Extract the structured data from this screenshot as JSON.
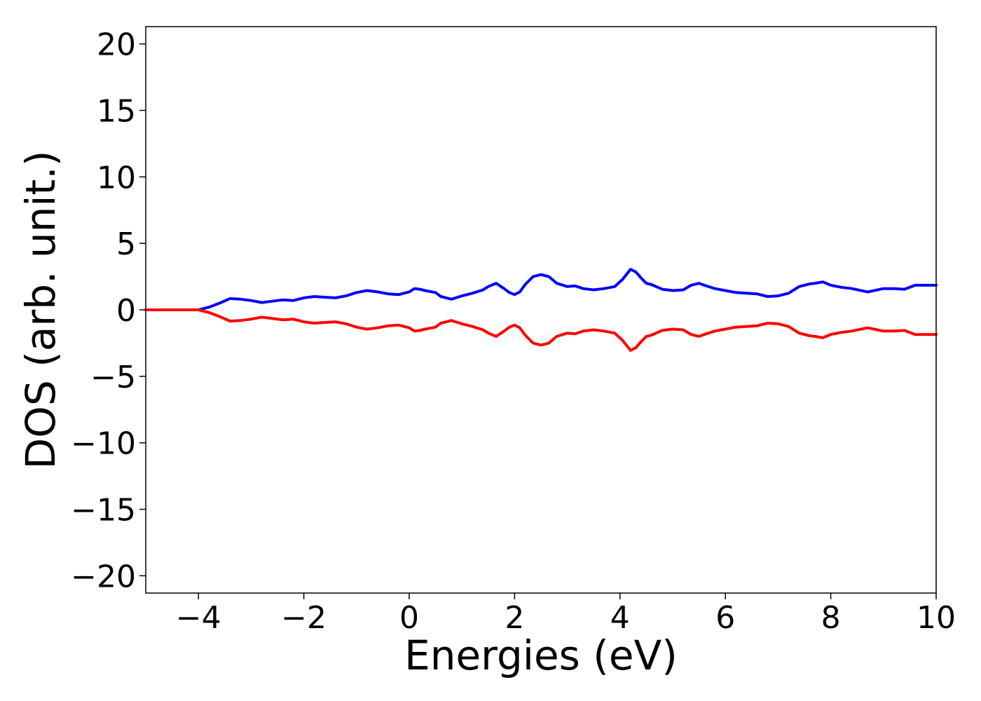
{
  "chart_data": {
    "type": "line",
    "title": "",
    "xlabel": "Energies (eV)",
    "ylabel": "DOS (arb. unit.)",
    "xlim": [
      -5,
      10
    ],
    "ylim": [
      -21.3,
      21.3
    ],
    "xticks": [
      -4,
      -2,
      0,
      2,
      4,
      6,
      8,
      10
    ],
    "xtick_labels": [
      "−4",
      "−2",
      "0",
      "2",
      "4",
      "6",
      "8",
      "10"
    ],
    "yticks": [
      20,
      15,
      10,
      5,
      0,
      -5,
      -10,
      -15,
      -20
    ],
    "ytick_labels": [
      "20",
      "15",
      "10",
      "5",
      "0",
      "−5",
      "−10",
      "−15",
      "−20"
    ],
    "grid": false,
    "series": [
      {
        "color": "#0000ff",
        "x": [
          -5,
          -4.5,
          -4,
          -3.8,
          -3.6,
          -3.4,
          -3.2,
          -3.0,
          -2.8,
          -2.6,
          -2.4,
          -2.2,
          -2.0,
          -1.8,
          -1.6,
          -1.4,
          -1.2,
          -1.0,
          -0.8,
          -0.6,
          -0.4,
          -0.2,
          0.0,
          0.1,
          0.2,
          0.3,
          0.5,
          0.6,
          0.8,
          1.0,
          1.2,
          1.4,
          1.5,
          1.65,
          1.8,
          1.9,
          2.0,
          2.1,
          2.2,
          2.35,
          2.5,
          2.65,
          2.8,
          3.0,
          3.15,
          3.3,
          3.5,
          3.7,
          3.9,
          4.05,
          4.2,
          4.3,
          4.4,
          4.5,
          4.6,
          4.8,
          5.0,
          5.2,
          5.35,
          5.5,
          5.6,
          5.8,
          6.0,
          6.2,
          6.4,
          6.6,
          6.8,
          7.0,
          7.2,
          7.4,
          7.6,
          7.7,
          7.85,
          8.0,
          8.2,
          8.4,
          8.7,
          9.0,
          9.2,
          9.4,
          9.6,
          10.0
        ],
        "y": [
          0,
          0,
          0,
          0.2,
          0.5,
          0.85,
          0.8,
          0.7,
          0.55,
          0.65,
          0.75,
          0.7,
          0.9,
          1.0,
          0.95,
          0.9,
          1.05,
          1.3,
          1.45,
          1.35,
          1.2,
          1.15,
          1.35,
          1.6,
          1.55,
          1.45,
          1.3,
          1.0,
          0.8,
          1.05,
          1.25,
          1.5,
          1.75,
          2.0,
          1.6,
          1.3,
          1.15,
          1.35,
          1.9,
          2.5,
          2.65,
          2.5,
          2.0,
          1.75,
          1.8,
          1.6,
          1.5,
          1.6,
          1.75,
          2.3,
          3.05,
          2.85,
          2.4,
          2.0,
          1.9,
          1.55,
          1.45,
          1.5,
          1.85,
          2.0,
          1.85,
          1.6,
          1.45,
          1.3,
          1.25,
          1.2,
          1.0,
          1.05,
          1.25,
          1.75,
          1.95,
          2.0,
          2.1,
          1.85,
          1.7,
          1.6,
          1.35,
          1.6,
          1.6,
          1.55,
          1.85,
          1.85
        ]
      },
      {
        "color": "#ff0000",
        "x": [
          -5,
          -4.5,
          -4,
          -3.8,
          -3.6,
          -3.4,
          -3.2,
          -3.0,
          -2.8,
          -2.6,
          -2.4,
          -2.2,
          -2.0,
          -1.8,
          -1.6,
          -1.4,
          -1.2,
          -1.0,
          -0.8,
          -0.6,
          -0.4,
          -0.2,
          0.0,
          0.1,
          0.2,
          0.3,
          0.5,
          0.6,
          0.8,
          1.0,
          1.2,
          1.4,
          1.5,
          1.65,
          1.8,
          1.9,
          2.0,
          2.1,
          2.2,
          2.35,
          2.5,
          2.65,
          2.8,
          3.0,
          3.15,
          3.3,
          3.5,
          3.7,
          3.9,
          4.05,
          4.2,
          4.3,
          4.4,
          4.5,
          4.6,
          4.8,
          5.0,
          5.2,
          5.35,
          5.5,
          5.6,
          5.8,
          6.0,
          6.2,
          6.4,
          6.6,
          6.8,
          7.0,
          7.2,
          7.4,
          7.6,
          7.7,
          7.85,
          8.0,
          8.2,
          8.4,
          8.7,
          9.0,
          9.2,
          9.4,
          9.6,
          10.0
        ],
        "y": [
          0,
          0,
          0,
          -0.2,
          -0.5,
          -0.85,
          -0.8,
          -0.7,
          -0.55,
          -0.65,
          -0.75,
          -0.7,
          -0.9,
          -1.0,
          -0.95,
          -0.9,
          -1.05,
          -1.3,
          -1.45,
          -1.35,
          -1.2,
          -1.15,
          -1.35,
          -1.6,
          -1.55,
          -1.45,
          -1.3,
          -1.0,
          -0.8,
          -1.05,
          -1.25,
          -1.5,
          -1.75,
          -2.0,
          -1.6,
          -1.3,
          -1.15,
          -1.35,
          -1.9,
          -2.5,
          -2.65,
          -2.5,
          -2.0,
          -1.75,
          -1.8,
          -1.6,
          -1.5,
          -1.6,
          -1.75,
          -2.3,
          -3.05,
          -2.85,
          -2.4,
          -2.0,
          -1.9,
          -1.55,
          -1.45,
          -1.5,
          -1.85,
          -2.0,
          -1.85,
          -1.6,
          -1.45,
          -1.3,
          -1.25,
          -1.2,
          -1.0,
          -1.05,
          -1.25,
          -1.75,
          -1.95,
          -2.0,
          -2.1,
          -1.85,
          -1.7,
          -1.6,
          -1.35,
          -1.6,
          -1.6,
          -1.55,
          -1.85,
          -1.85
        ]
      }
    ]
  }
}
